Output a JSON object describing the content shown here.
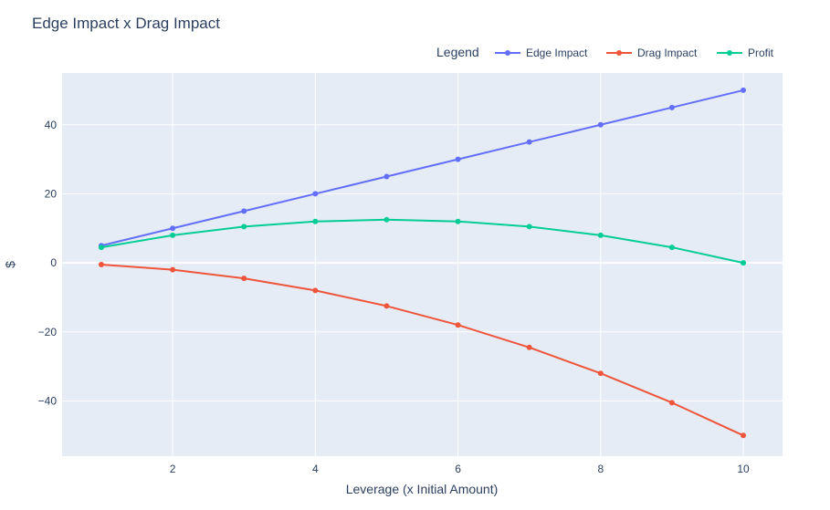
{
  "chart_data": {
    "type": "line",
    "title": "Edge Impact x Drag Impact",
    "xlabel": "Leverage (x Initial Amount)",
    "ylabel": "$",
    "x": [
      1,
      2,
      3,
      4,
      5,
      6,
      7,
      8,
      9,
      10
    ],
    "xlim": [
      0.45,
      10.55
    ],
    "ylim": [
      -56,
      55
    ],
    "xticks": [
      2,
      4,
      6,
      8,
      10
    ],
    "yticks": [
      -40,
      -20,
      0,
      20,
      40
    ],
    "xtick_labels": [
      "2",
      "4",
      "6",
      "8",
      "10"
    ],
    "ytick_labels": [
      "−40",
      "−20",
      "0",
      "20",
      "40"
    ],
    "grid": true,
    "legend": {
      "title": "Legend",
      "position": "top-right"
    },
    "series": [
      {
        "name": "Edge Impact",
        "color": "#636efa",
        "values": [
          5,
          10,
          15,
          20,
          25,
          30,
          35,
          40,
          45,
          50
        ]
      },
      {
        "name": "Drag Impact",
        "color": "#ef553b",
        "values": [
          -0.5,
          -2,
          -4.5,
          -8,
          -12.5,
          -18,
          -24.5,
          -32,
          -40.5,
          -50
        ]
      },
      {
        "name": "Profit",
        "color": "#00cc96",
        "values": [
          4.5,
          8,
          10.5,
          12,
          12.5,
          12,
          10.5,
          8,
          4.5,
          0
        ]
      }
    ]
  }
}
